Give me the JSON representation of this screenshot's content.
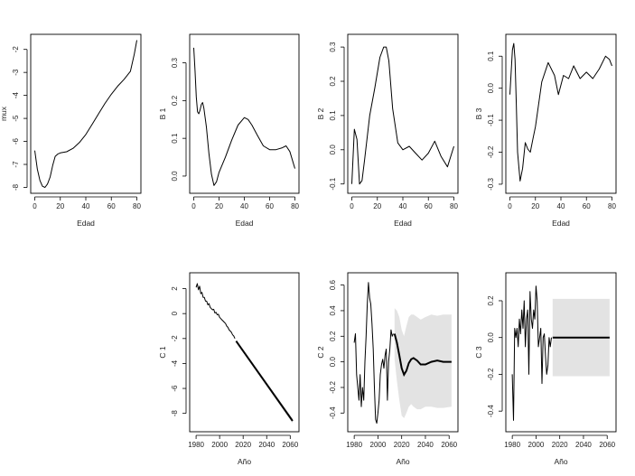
{
  "chart_data": [
    {
      "id": "mux",
      "type": "line",
      "xlabel": "Edad",
      "ylabel": "mux",
      "xlim": [
        0,
        80
      ],
      "ylim": [
        -8.0,
        -1.6
      ],
      "xticks": [
        0,
        20,
        40,
        60,
        80
      ],
      "yticks": [
        -8,
        -7,
        -6,
        -5,
        -4,
        -3,
        -2
      ],
      "x": [
        0,
        2,
        4,
        6,
        8,
        10,
        12,
        14,
        16,
        18,
        20,
        25,
        30,
        35,
        40,
        45,
        50,
        55,
        60,
        65,
        70,
        75,
        78,
        80
      ],
      "y": [
        -6.4,
        -7.2,
        -7.7,
        -7.95,
        -8.0,
        -7.85,
        -7.55,
        -7.05,
        -6.65,
        -6.55,
        -6.5,
        -6.45,
        -6.3,
        -6.05,
        -5.7,
        -5.25,
        -4.8,
        -4.35,
        -3.95,
        -3.6,
        -3.3,
        -2.95,
        -2.2,
        -1.6
      ]
    },
    {
      "id": "b1",
      "type": "line",
      "xlabel": "Edad",
      "ylabel": "B 1",
      "xlim": [
        0,
        80
      ],
      "ylim": [
        -0.03,
        0.36
      ],
      "xticks": [
        0,
        20,
        40,
        60,
        80
      ],
      "yticks": [
        0.0,
        0.1,
        0.2,
        0.3
      ],
      "x": [
        0,
        1,
        2,
        3,
        4,
        5,
        6,
        7,
        8,
        10,
        12,
        14,
        16,
        18,
        20,
        25,
        30,
        35,
        40,
        43,
        46,
        50,
        55,
        60,
        65,
        70,
        73,
        76,
        80
      ],
      "y": [
        0.34,
        0.28,
        0.21,
        0.17,
        0.165,
        0.175,
        0.19,
        0.195,
        0.18,
        0.13,
        0.06,
        0.005,
        -0.025,
        -0.015,
        0.01,
        0.05,
        0.095,
        0.135,
        0.155,
        0.15,
        0.135,
        0.11,
        0.08,
        0.07,
        0.07,
        0.075,
        0.08,
        0.065,
        0.02
      ]
    },
    {
      "id": "b2",
      "type": "line",
      "xlabel": "Edad",
      "ylabel": "B 2",
      "xlim": [
        0,
        80
      ],
      "ylim": [
        -0.11,
        0.32
      ],
      "xticks": [
        0,
        20,
        40,
        60,
        80
      ],
      "yticks": [
        -0.1,
        0.0,
        0.1,
        0.2,
        0.3
      ],
      "x": [
        0,
        2,
        4,
        6,
        8,
        10,
        14,
        18,
        22,
        25,
        27,
        29,
        32,
        36,
        40,
        45,
        50,
        55,
        60,
        65,
        70,
        75,
        80
      ],
      "y": [
        -0.1,
        0.06,
        0.03,
        -0.1,
        -0.09,
        -0.03,
        0.1,
        0.18,
        0.27,
        0.3,
        0.3,
        0.26,
        0.12,
        0.02,
        0.0,
        0.01,
        -0.01,
        -0.03,
        -0.01,
        0.025,
        -0.02,
        -0.05,
        0.01
      ]
    },
    {
      "id": "b3",
      "type": "line",
      "xlabel": "Edad",
      "ylabel": "B 3",
      "xlim": [
        0,
        80
      ],
      "ylim": [
        -0.31,
        0.15
      ],
      "xticks": [
        0,
        20,
        40,
        60,
        80
      ],
      "yticks": [
        -0.3,
        -0.2,
        -0.1,
        0.0,
        0.1
      ],
      "x": [
        0,
        2,
        3,
        4,
        5,
        6,
        8,
        10,
        12,
        14,
        16,
        18,
        20,
        25,
        30,
        35,
        38,
        42,
        46,
        50,
        55,
        60,
        65,
        70,
        75,
        78,
        80
      ],
      "y": [
        -0.02,
        0.12,
        0.14,
        0.09,
        -0.05,
        -0.2,
        -0.29,
        -0.25,
        -0.17,
        -0.19,
        -0.2,
        -0.16,
        -0.12,
        0.02,
        0.08,
        0.04,
        -0.02,
        0.04,
        0.03,
        0.07,
        0.03,
        0.05,
        0.03,
        0.06,
        0.1,
        0.09,
        0.07
      ]
    },
    {
      "id": "c1",
      "type": "line",
      "xlabel": "Año",
      "ylabel": "C 1",
      "xlim": [
        1978,
        2064
      ],
      "ylim": [
        -9.0,
        2.8
      ],
      "xticks": [
        1980,
        2000,
        2020,
        2040,
        2060
      ],
      "yticks": [
        -8,
        -6,
        -4,
        -2,
        0,
        2
      ],
      "x": [
        1980,
        1981,
        1982,
        1983,
        1984,
        1985,
        1986,
        1987,
        1988,
        1989,
        1990,
        1991,
        1992,
        1993,
        1994,
        1995,
        1996,
        1997,
        1998,
        1999,
        2000,
        2001,
        2002,
        2003,
        2004,
        2005,
        2006,
        2007,
        2008,
        2009,
        2010,
        2011,
        2012,
        2013
      ],
      "y": [
        2.1,
        2.4,
        1.9,
        2.2,
        1.6,
        1.7,
        1.3,
        1.3,
        1.0,
        1.0,
        0.7,
        0.8,
        0.5,
        0.4,
        0.3,
        0.35,
        0.05,
        0.1,
        -0.1,
        -0.05,
        -0.3,
        -0.4,
        -0.5,
        -0.6,
        -0.7,
        -0.8,
        -1.0,
        -1.1,
        -1.3,
        -1.4,
        -1.5,
        -1.7,
        -1.8,
        -2.0
      ],
      "forecast": {
        "x": [
          2014,
          2062
        ],
        "y": [
          -2.2,
          -8.6
        ],
        "lower": [
          -2.25,
          -8.8
        ],
        "upper": [
          -2.15,
          -8.4
        ]
      }
    },
    {
      "id": "c2",
      "type": "line",
      "xlabel": "Año",
      "ylabel": "C 2",
      "xlim": [
        1978,
        2064
      ],
      "ylim": [
        -0.5,
        0.65
      ],
      "xticks": [
        1980,
        2000,
        2020,
        2040,
        2060
      ],
      "yticks": [
        -0.4,
        -0.2,
        0.0,
        0.2,
        0.4,
        0.6
      ],
      "x": [
        1980,
        1981,
        1982,
        1983,
        1984,
        1985,
        1986,
        1987,
        1988,
        1989,
        1990,
        1991,
        1992,
        1993,
        1994,
        1995,
        1996,
        1997,
        1998,
        1999,
        2000,
        2001,
        2002,
        2003,
        2004,
        2005,
        2006,
        2007,
        2008,
        2009,
        2010,
        2011,
        2012,
        2013
      ],
      "y": [
        0.15,
        0.22,
        -0.1,
        -0.2,
        -0.3,
        -0.1,
        -0.35,
        -0.2,
        -0.3,
        0.0,
        0.2,
        0.45,
        0.62,
        0.5,
        0.45,
        0.3,
        0.1,
        -0.2,
        -0.45,
        -0.48,
        -0.4,
        -0.3,
        -0.1,
        -0.02,
        0.02,
        -0.05,
        0.05,
        0.1,
        -0.3,
        0.0,
        0.1,
        0.25,
        0.2,
        0.22
      ],
      "forecast": {
        "x": [
          2014,
          2016,
          2018,
          2020,
          2022,
          2024,
          2026,
          2028,
          2030,
          2033,
          2036,
          2040,
          2045,
          2050,
          2055,
          2062
        ],
        "y": [
          0.22,
          0.15,
          0.05,
          -0.05,
          -0.1,
          -0.07,
          -0.01,
          0.02,
          0.03,
          0.01,
          -0.02,
          -0.02,
          0.0,
          0.01,
          0.0,
          0.0
        ],
        "lower": [
          0.02,
          -0.15,
          -0.3,
          -0.42,
          -0.44,
          -0.4,
          -0.35,
          -0.33,
          -0.35,
          -0.37,
          -0.37,
          -0.35,
          -0.35,
          -0.36,
          -0.36,
          -0.35
        ],
        "upper": [
          0.42,
          0.4,
          0.35,
          0.25,
          0.2,
          0.28,
          0.35,
          0.37,
          0.37,
          0.35,
          0.33,
          0.35,
          0.37,
          0.36,
          0.37,
          0.37
        ]
      }
    },
    {
      "id": "c3",
      "type": "line",
      "xlabel": "Año",
      "ylabel": "C 3",
      "xlim": [
        1978,
        2064
      ],
      "ylim": [
        -0.48,
        0.32
      ],
      "xticks": [
        1980,
        2000,
        2020,
        2040,
        2060
      ],
      "yticks": [
        -0.4,
        -0.2,
        0.0,
        0.2
      ],
      "x": [
        1980,
        1981,
        1982,
        1983,
        1984,
        1985,
        1986,
        1987,
        1988,
        1989,
        1990,
        1991,
        1992,
        1993,
        1994,
        1995,
        1996,
        1997,
        1998,
        1999,
        2000,
        2001,
        2002,
        2003,
        2004,
        2005,
        2006,
        2007,
        2008,
        2009,
        2010,
        2011,
        2012,
        2013
      ],
      "y": [
        -0.2,
        -0.45,
        0.05,
        0.0,
        0.05,
        -0.05,
        0.1,
        0.02,
        0.15,
        0.05,
        0.2,
        -0.05,
        0.1,
        0.15,
        -0.2,
        0.25,
        0.1,
        0.05,
        0.15,
        0.1,
        0.28,
        0.2,
        -0.05,
        0.0,
        0.05,
        -0.25,
        0.0,
        0.02,
        -0.1,
        -0.2,
        -0.15,
        0.0,
        -0.05,
        0.0
      ],
      "forecast": {
        "x": [
          2014,
          2062
        ],
        "y": [
          0.0,
          0.0
        ],
        "lower": [
          -0.21,
          -0.21
        ],
        "upper": [
          0.21,
          0.21
        ]
      }
    }
  ]
}
